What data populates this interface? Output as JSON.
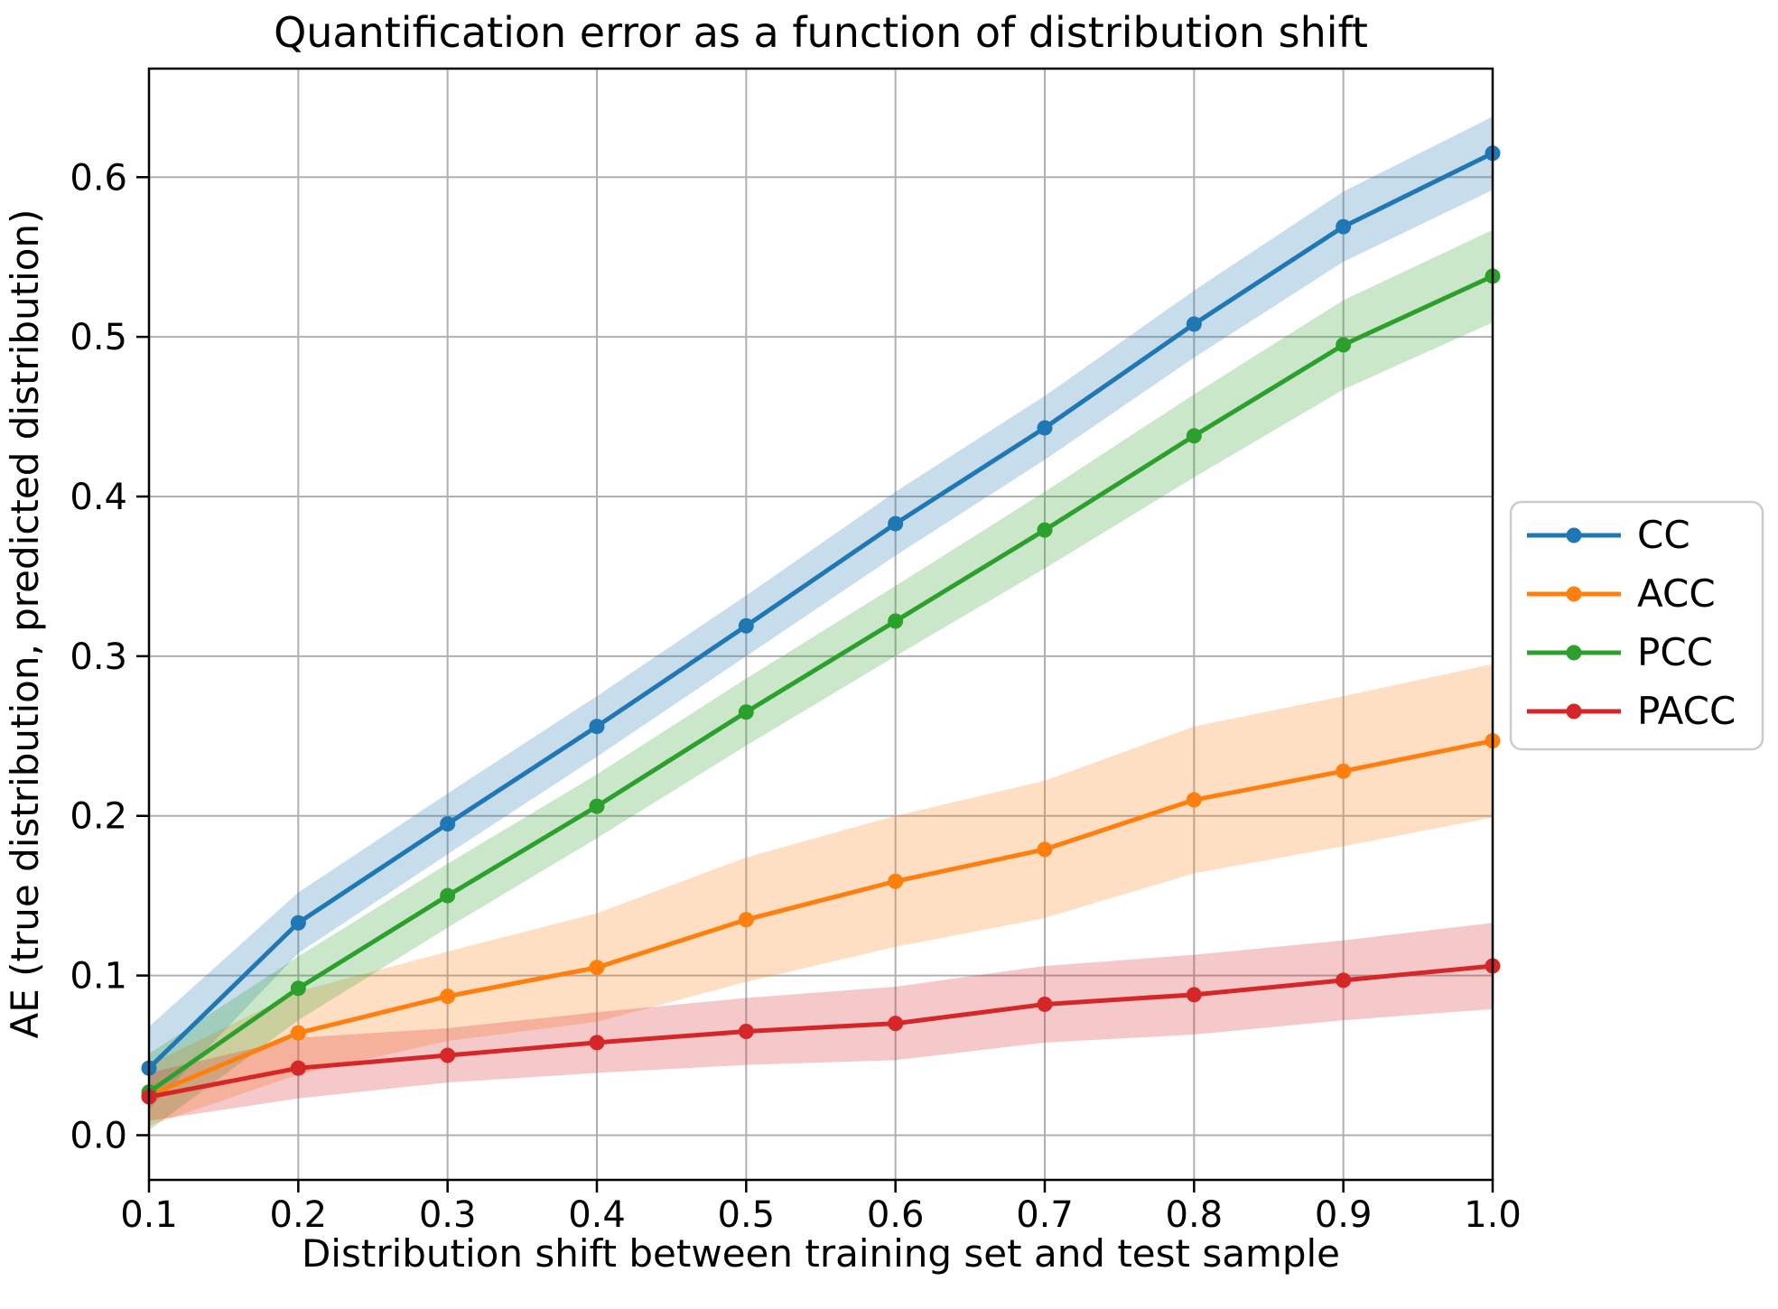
{
  "chart_data": {
    "type": "line",
    "title": "Quantification error as a function of distribution shift",
    "xlabel": "Distribution shift between training set and test sample",
    "ylabel": "AE (true distribution, predicted distribution)",
    "x": [
      0.1,
      0.2,
      0.3,
      0.4,
      0.5,
      0.6,
      0.7,
      0.8,
      0.9,
      1.0
    ],
    "x_tick_labels": [
      "0.1",
      "0.2",
      "0.3",
      "0.4",
      "0.5",
      "0.6",
      "0.7",
      "0.8",
      "0.9",
      "1.0"
    ],
    "y_ticks": [
      0.0,
      0.1,
      0.2,
      0.3,
      0.4,
      0.5,
      0.6
    ],
    "y_tick_labels": [
      "0.0",
      "0.1",
      "0.2",
      "0.3",
      "0.4",
      "0.5",
      "0.6"
    ],
    "xlim": [
      0.1,
      1.0
    ],
    "ylim": [
      -0.028,
      0.668
    ],
    "grid": true,
    "legend_position": "outside-right",
    "grid_color": "#b0b0b0",
    "spine_color": "#000000",
    "band_opacity": 0.25,
    "series": [
      {
        "name": "CC",
        "color": "#1f77b4",
        "values": [
          0.042,
          0.133,
          0.195,
          0.256,
          0.319,
          0.383,
          0.443,
          0.508,
          0.569,
          0.615
        ],
        "band_halfwidth": [
          0.026,
          0.019,
          0.019,
          0.019,
          0.019,
          0.02,
          0.02,
          0.021,
          0.022,
          0.023
        ]
      },
      {
        "name": "ACC",
        "color": "#ff7f0e",
        "values": [
          0.025,
          0.064,
          0.087,
          0.105,
          0.135,
          0.159,
          0.179,
          0.21,
          0.228,
          0.247
        ],
        "band_halfwidth": [
          0.019,
          0.026,
          0.028,
          0.034,
          0.039,
          0.041,
          0.043,
          0.046,
          0.047,
          0.048
        ]
      },
      {
        "name": "PCC",
        "color": "#2ca02c",
        "values": [
          0.027,
          0.092,
          0.15,
          0.206,
          0.265,
          0.322,
          0.379,
          0.438,
          0.495,
          0.538
        ],
        "band_halfwidth": [
          0.024,
          0.02,
          0.02,
          0.02,
          0.021,
          0.022,
          0.024,
          0.026,
          0.028,
          0.029
        ]
      },
      {
        "name": "PACC",
        "color": "#d62728",
        "values": [
          0.024,
          0.042,
          0.05,
          0.058,
          0.065,
          0.07,
          0.082,
          0.088,
          0.097,
          0.106
        ],
        "band_halfwidth": [
          0.015,
          0.019,
          0.017,
          0.019,
          0.021,
          0.023,
          0.024,
          0.025,
          0.025,
          0.027
        ]
      }
    ]
  }
}
